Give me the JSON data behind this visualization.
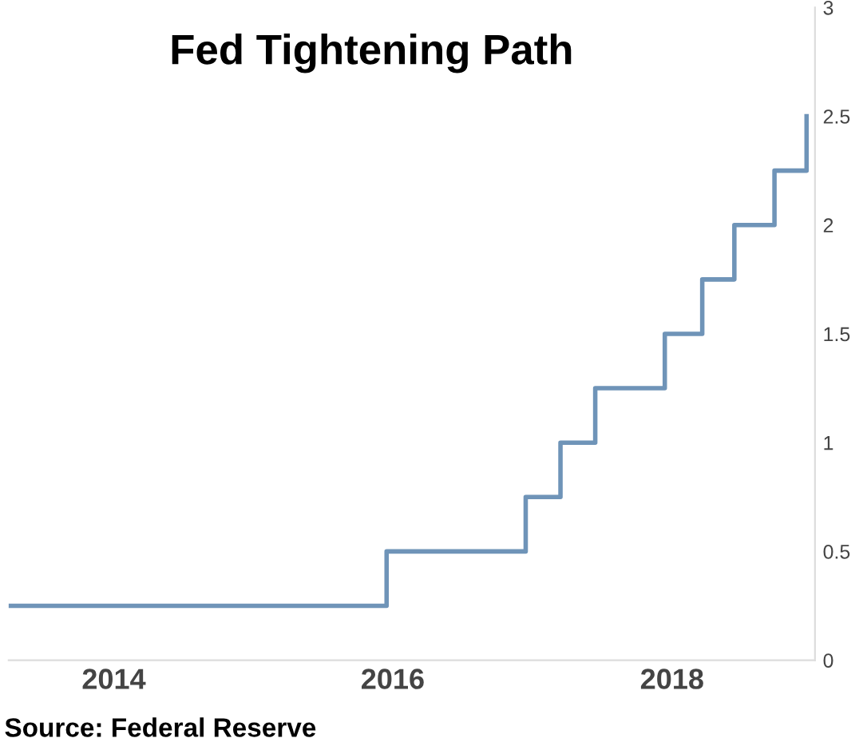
{
  "chart_data": {
    "type": "step",
    "title": "Fed Tightening Path",
    "x": [
      "2013-04-01",
      "2015-12-16",
      "2016-12-14",
      "2017-03-15",
      "2017-06-14",
      "2017-12-13",
      "2018-03-21",
      "2018-06-13",
      "2018-09-26",
      "2018-12-19"
    ],
    "series": [
      {
        "color": "#6f94b8",
        "values": [
          0.25,
          0.5,
          0.75,
          1,
          1.25,
          1.5,
          1.75,
          2,
          2.25,
          2.5
        ]
      }
    ],
    "xlim": [
      "2013-04-01",
      "2019-01-10"
    ],
    "xticks": [
      {
        "value": "2014",
        "label": "2014"
      },
      {
        "value": "2016",
        "label": "2016"
      },
      {
        "value": "2018",
        "label": "2018"
      }
    ],
    "ylim": [
      0,
      3
    ],
    "yticks": [
      0,
      0.5,
      1,
      1.5,
      2,
      2.5,
      3
    ],
    "grid": false,
    "legend": false,
    "marker": "none",
    "line_style": "solid",
    "annotations": [
      "Source: Federal Reserve"
    ]
  }
}
